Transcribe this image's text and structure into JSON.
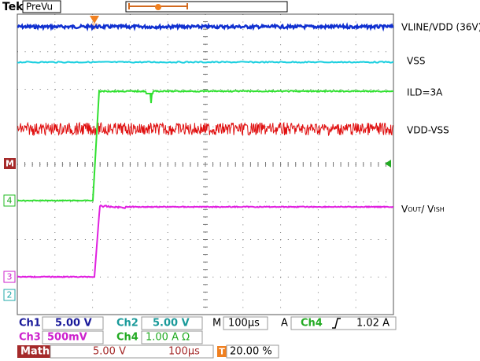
{
  "header": {
    "brand": "Tek",
    "mode": "PreVu"
  },
  "trace_labels": {
    "vline": "VLINE/VDD (36V)",
    "vss": "VSS",
    "ild": "ILD=3A",
    "vdd_vss": "VDD-VSS",
    "vout": {
      "v1": "V",
      "sub1": "OUT",
      "sep": "/ ",
      "v2": "V",
      "sub2": "ISH"
    }
  },
  "markers": {
    "math": "M",
    "ch4": "4",
    "ch3": "3",
    "ch2": "2",
    "trigger": "T"
  },
  "status": {
    "row1": {
      "ch1": "Ch1",
      "ch1_scale": "5.00 V",
      "ch2": "Ch2",
      "ch2_scale": "5.00 V",
      "m": "M",
      "timebase": "100µs",
      "a": "A",
      "trig_src": "Ch4",
      "trig_level": "1.02 A"
    },
    "row2": {
      "ch3": "Ch3",
      "ch3_scale": "500mV",
      "ch4": "Ch4",
      "ch4_scale": "1.00 A Ω"
    },
    "row3": {
      "math": "Math",
      "math_scale": "5.00 V",
      "math_time": "100µs",
      "t": "T",
      "trig_pos": "20.00 %"
    }
  }
}
